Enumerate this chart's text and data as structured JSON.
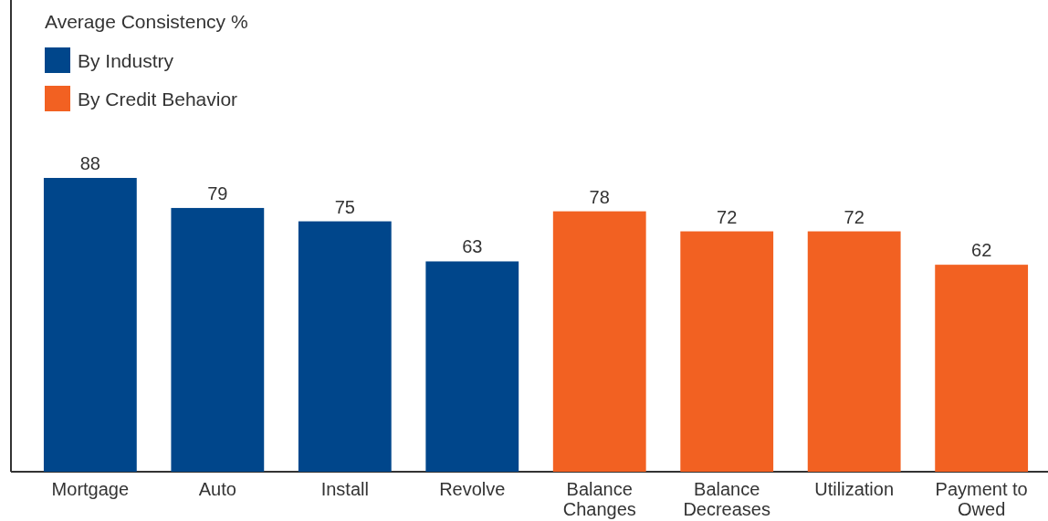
{
  "chart_data": {
    "type": "bar",
    "annotations": [
      "Average Consistency %"
    ],
    "categories": [
      "Mortgage",
      "Auto",
      "Install",
      "Revolve",
      "Balance Changes",
      "Balance Decreases",
      "Utilization",
      "Payment to Owed"
    ],
    "series": [
      {
        "name": "By Industry",
        "color": "#00468b",
        "values": [
          88,
          79,
          75,
          63,
          null,
          null,
          null,
          null
        ]
      },
      {
        "name": "By Credit Behavior",
        "color": "#f26122",
        "values": [
          null,
          null,
          null,
          null,
          78,
          72,
          72,
          62
        ]
      }
    ],
    "relative": false,
    "data_labels": true,
    "legend": "top left"
  }
}
